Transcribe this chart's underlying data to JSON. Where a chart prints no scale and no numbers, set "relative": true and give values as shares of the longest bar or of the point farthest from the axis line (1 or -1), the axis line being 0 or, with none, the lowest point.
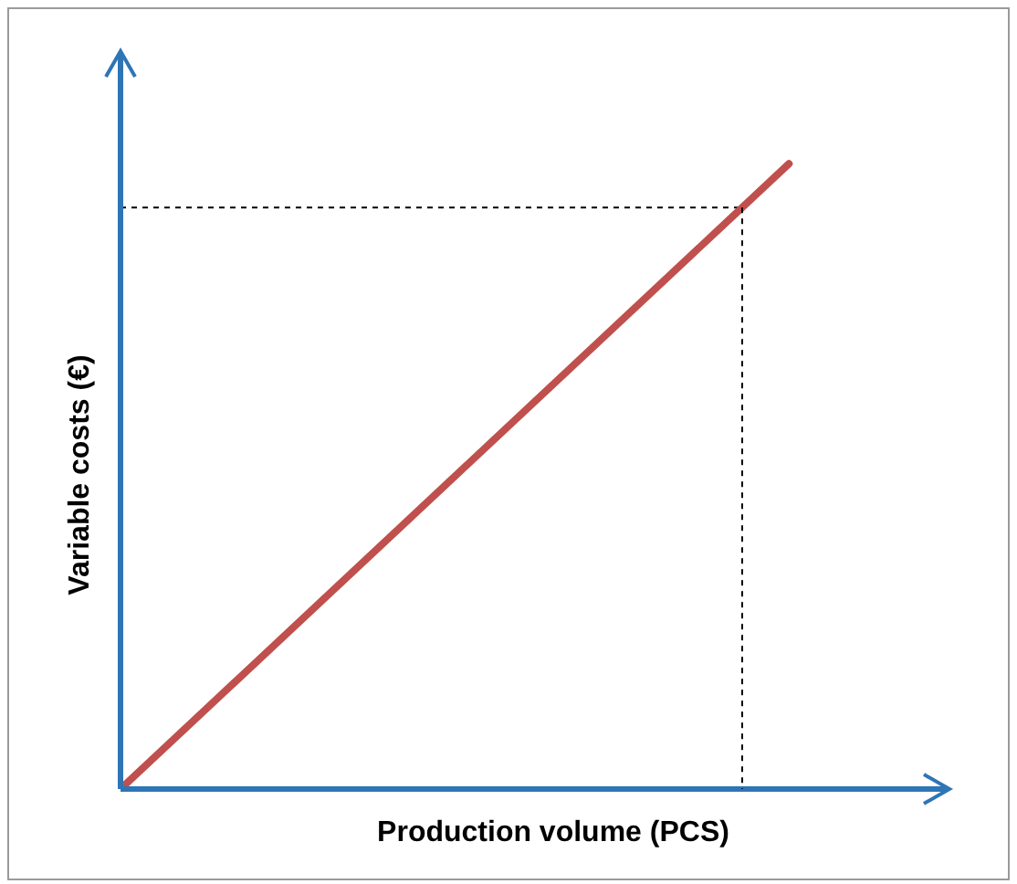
{
  "chart_data": {
    "type": "line",
    "relative": true,
    "xlabel": "Production volume (PCS)",
    "ylabel": "Variable costs (€)",
    "categories": [
      null,
      null
    ],
    "values": [
      0,
      1
    ],
    "color": "#c0504d",
    "ref_lines": [
      {
        "axis": "y",
        "value": 0.93,
        "color": "#000000",
        "line_style": "dashed"
      }
    ]
  }
}
